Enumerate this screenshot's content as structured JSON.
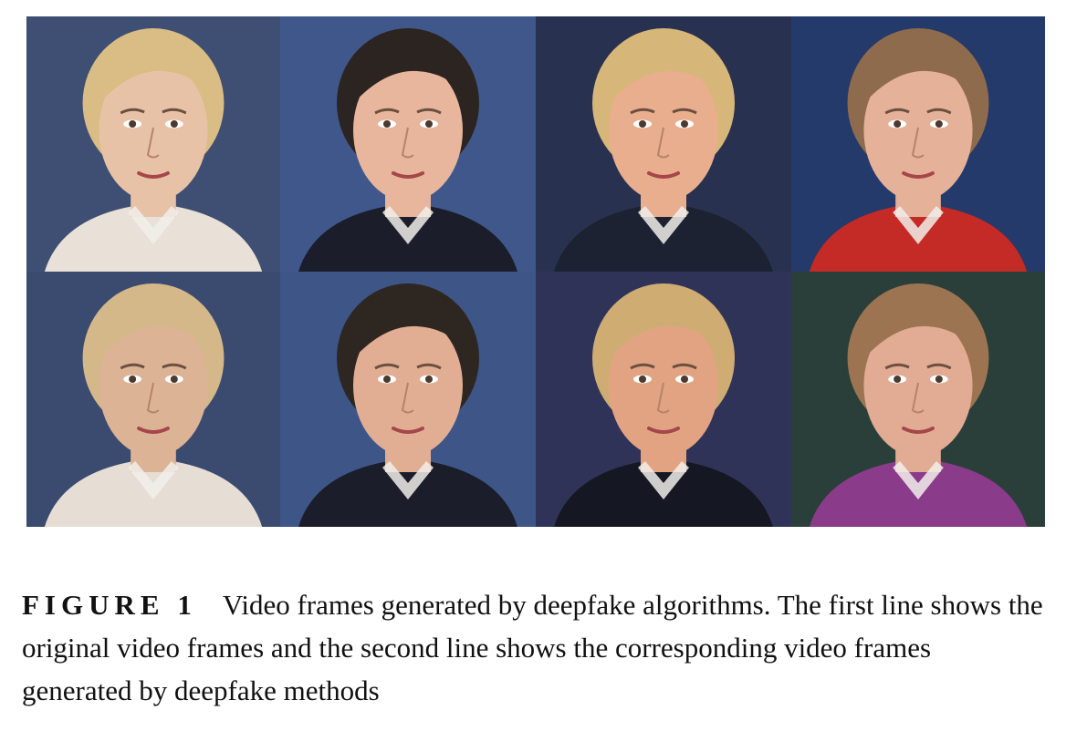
{
  "figure": {
    "label": "FIGURE 1",
    "caption": "Video frames generated by deepfake algorithms. The first line shows the original video frames and the second line shows the corresponding video frames generated by deepfake methods",
    "rows": [
      {
        "name": "original",
        "frames": [
          {
            "bg": "#3e4f73",
            "skin": "#e8c2a6",
            "hair": "#d9bd84",
            "clothes": "#e9e1d8"
          },
          {
            "bg": "#40578b",
            "skin": "#e7b69c",
            "hair": "#2b2420",
            "clothes": "#1b1e2a"
          },
          {
            "bg": "#28314f",
            "skin": "#e8ae8e",
            "hair": "#d7b679",
            "clothes": "#1d2232"
          },
          {
            "bg": "#243a6a",
            "skin": "#e5b198",
            "hair": "#8e6b4c",
            "clothes": "#c42a26"
          }
        ]
      },
      {
        "name": "deepfake",
        "frames": [
          {
            "bg": "#3b4b70",
            "skin": "#ddb396",
            "hair": "#d4b889",
            "clothes": "#e6ded4"
          },
          {
            "bg": "#3e5588",
            "skin": "#e1ae93",
            "hair": "#2e2621",
            "clothes": "#1b1e2a"
          },
          {
            "bg": "#2f3358",
            "skin": "#e2a383",
            "hair": "#cfad72",
            "clothes": "#151823"
          },
          {
            "bg": "#2a3f3a",
            "skin": "#e2ab93",
            "hair": "#9d7451",
            "clothes": "#8a3b8a"
          }
        ]
      }
    ]
  }
}
